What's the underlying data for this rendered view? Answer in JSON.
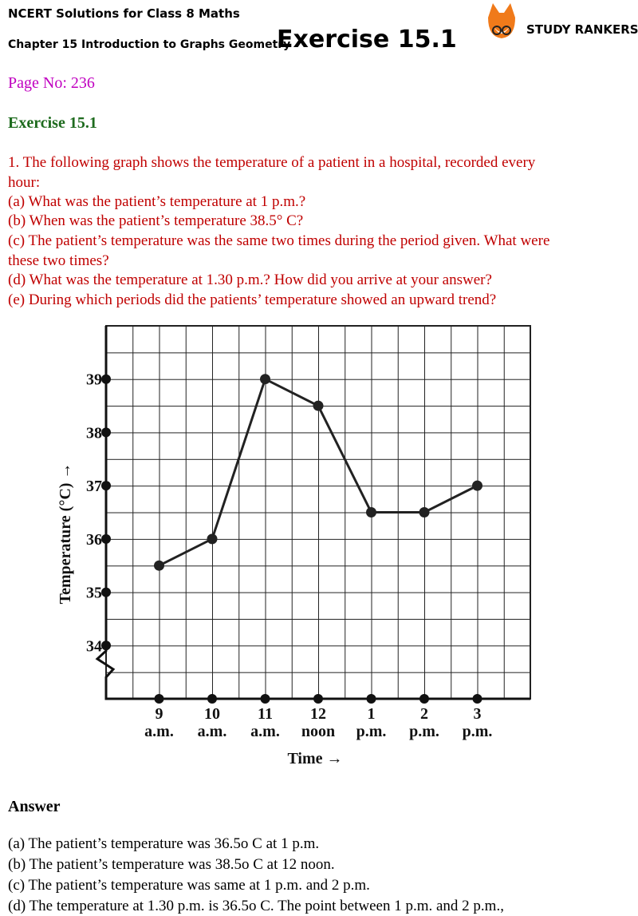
{
  "header": {
    "title": "NCERT Solutions for Class 8 Maths",
    "chapter": "Chapter 15 Introduction to Graphs Geometry",
    "exercise": "Exercise 15.1",
    "brand": "STUDY RANKERS"
  },
  "page_no": "Page No: 236",
  "section": "Exercise 15.1",
  "question": {
    "intro": "1. The following graph shows the temperature of a patient in a hospital, recorded every hour:",
    "parts": [
      "(a) What was the patient’s temperature at 1 p.m.?",
      "(b) When was the patient’s temperature 38.5° C?",
      "(c) The patient’s temperature was the same two times during the period given. What were these two times?",
      "(d) What was the temperature at 1.30 p.m.? How did you arrive at your answer?",
      "(e) During which periods did the patients’ temperature showed an upward trend?"
    ]
  },
  "chart_data": {
    "type": "line",
    "x_label": "Time →",
    "y_label": "Temperature (°C) →",
    "categories": [
      "9 a.m.",
      "10 a.m.",
      "11 a.m.",
      "12 noon",
      "1 p.m.",
      "2 p.m.",
      "3 p.m."
    ],
    "values": [
      35.5,
      36,
      39,
      38.5,
      36.5,
      36.5,
      37
    ],
    "color": "#222222",
    "ylim": [
      33,
      40
    ],
    "yticks": [
      34,
      35,
      36,
      37,
      38,
      39
    ],
    "grid": true
  },
  "answer": {
    "title": "Answer",
    "parts": [
      "(a) The patient’s temperature was 36.5o C at 1 p.m.",
      "(b) The patient’s temperature was 38.5o C at 12 noon.",
      "(c) The patient’s temperature was same at 1 p.m. and 2 p.m.",
      "(d) The temperature at 1.30 p.m. is 36.5o C. The point between 1 p.m. and 2 p.m.,"
    ]
  }
}
